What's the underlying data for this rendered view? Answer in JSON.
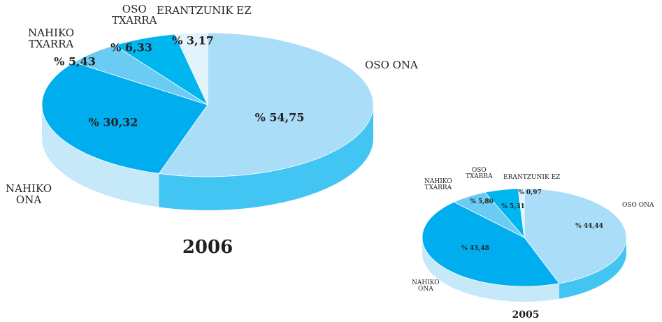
{
  "chart_data": [
    {
      "type": "pie3d",
      "title": "2006",
      "categories": [
        "OSO ONA",
        "NAHIKO\nONA",
        "NAHIKO\nTXARRA",
        "OSO\nTXARRA",
        "ERANTZUNIK EZ"
      ],
      "values": [
        54.75,
        30.32,
        5.43,
        6.33,
        3.17
      ],
      "value_labels": [
        "% 54,75",
        "% 30,32",
        "% 5,43",
        "% 6,33",
        "% 3,17"
      ],
      "colors": [
        "#a9ddf8",
        "#00aeef",
        "#6acbf3",
        "#00b6ef",
        "#e2f3fc"
      ],
      "side_colors": [
        "#43c5f3",
        "#c6e9f9",
        "#6acbf3",
        "#00b6ef",
        "#e2f3fc"
      ]
    },
    {
      "type": "pie3d",
      "title": "2005",
      "categories": [
        "OSO ONA",
        "NAHIKO\nONA",
        "NAHIKO\nTXARRA",
        "OSO\nTXARRA",
        "ERANTZUNIK EZ"
      ],
      "values": [
        44.44,
        43.48,
        5.8,
        5.31,
        0.97
      ],
      "value_labels": [
        "% 44,44",
        "% 43,48",
        "% 5,80",
        "% 5,31",
        "% 0,97"
      ],
      "colors": [
        "#a9ddf8",
        "#00aeef",
        "#6acbf3",
        "#00b6ef",
        "#e2f3fc"
      ],
      "side_colors": [
        "#43c5f3",
        "#c6e9f9",
        "#6acbf3",
        "#00b6ef",
        "#e2f3fc"
      ]
    }
  ]
}
